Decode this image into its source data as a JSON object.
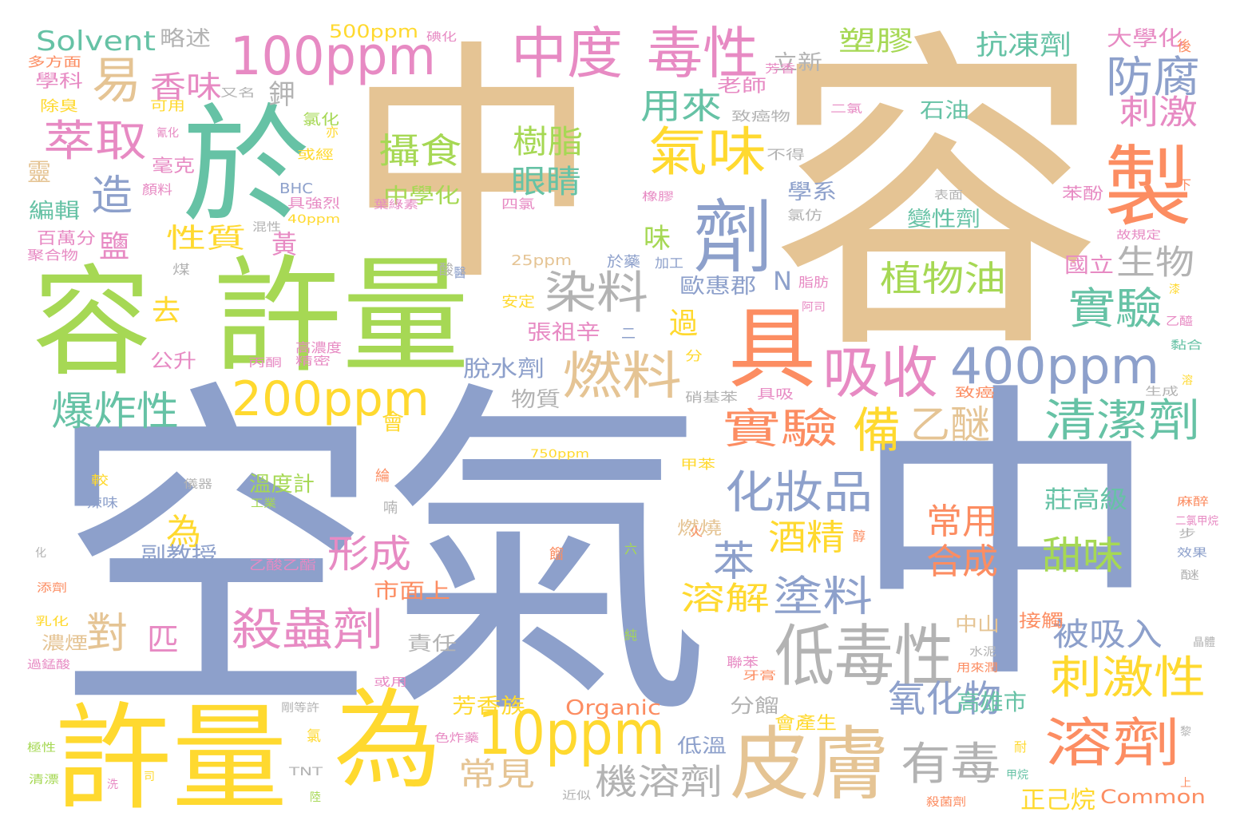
{
  "palette": {
    "tan": "#e5c494",
    "blue": "#8da0cb",
    "green": "#a6d854",
    "teal": "#66c2a5",
    "orange": "#fc8d62",
    "pink": "#e78ac3",
    "yellow": "#ffd92f",
    "gray": "#b3b3b3"
  },
  "words": [
    {
      "text": "中"
    },
    {
      "text": "容"
    },
    {
      "text": "空氣"
    },
    {
      "text": "中"
    },
    {
      "text": "許量"
    },
    {
      "text": "許量"
    },
    {
      "text": "容"
    },
    {
      "text": "為"
    },
    {
      "text": "於"
    },
    {
      "text": "製"
    },
    {
      "text": "具"
    },
    {
      "text": "皮膚"
    },
    {
      "text": "劑"
    },
    {
      "text": "低毒性"
    },
    {
      "text": "100ppm"
    },
    {
      "text": "200ppm"
    },
    {
      "text": "10ppm"
    },
    {
      "text": "400ppm"
    },
    {
      "text": "中度"
    },
    {
      "text": "毒性"
    },
    {
      "text": "氣味"
    },
    {
      "text": "吸收"
    },
    {
      "text": "燃料"
    },
    {
      "text": "溶劑"
    },
    {
      "text": "易"
    },
    {
      "text": "萃取"
    },
    {
      "text": "殺蟲劑"
    },
    {
      "text": "清潔劑"
    },
    {
      "text": "化妝品"
    },
    {
      "text": "刺激性"
    },
    {
      "text": "有毒"
    },
    {
      "text": "防腐"
    },
    {
      "text": "實驗"
    },
    {
      "text": "實驗"
    },
    {
      "text": "染料"
    },
    {
      "text": "機溶劑"
    },
    {
      "text": "塗料"
    },
    {
      "text": "植物油"
    },
    {
      "text": "爆炸性"
    },
    {
      "text": "備"
    },
    {
      "text": "攝食"
    },
    {
      "text": "眼睛"
    },
    {
      "text": "樹脂"
    },
    {
      "text": "刺激"
    },
    {
      "text": "生物"
    },
    {
      "text": "用來"
    },
    {
      "text": "乙醚"
    },
    {
      "text": "造"
    },
    {
      "text": "香味"
    },
    {
      "text": "形成"
    },
    {
      "text": "甜味"
    },
    {
      "text": "常用"
    },
    {
      "text": "合成"
    },
    {
      "text": "苯"
    },
    {
      "text": "酒精"
    },
    {
      "text": "溶解"
    },
    {
      "text": "對"
    },
    {
      "text": "匹"
    },
    {
      "text": "氧化物"
    },
    {
      "text": "被吸入"
    },
    {
      "text": "常見"
    },
    {
      "text": "Solvent"
    },
    {
      "text": "抗凍劑"
    },
    {
      "text": "塑膠"
    },
    {
      "text": "性質"
    },
    {
      "text": "脫水劑"
    },
    {
      "text": "為"
    },
    {
      "text": "去"
    },
    {
      "text": "鹽"
    },
    {
      "text": "黃"
    },
    {
      "text": "過"
    },
    {
      "text": "味"
    },
    {
      "text": "莊高級"
    },
    {
      "text": "Organic"
    },
    {
      "text": "Common"
    },
    {
      "text": "高雄市"
    },
    {
      "text": "正己烷"
    },
    {
      "text": "中學化"
    },
    {
      "text": "N"
    },
    {
      "text": "會"
    },
    {
      "text": "芳香族"
    },
    {
      "text": "市面上"
    },
    {
      "text": "副教授"
    },
    {
      "text": "溫度計"
    },
    {
      "text": "物質"
    },
    {
      "text": "張祖辛"
    },
    {
      "text": "歐惠郡"
    },
    {
      "text": "學系"
    },
    {
      "text": "變性劑"
    },
    {
      "text": "國立"
    },
    {
      "text": "石油"
    },
    {
      "text": "大學化"
    },
    {
      "text": "立新"
    },
    {
      "text": "略述"
    },
    {
      "text": "500ppm"
    },
    {
      "text": "鉀"
    },
    {
      "text": "老師"
    },
    {
      "text": "低溫"
    },
    {
      "text": "分餾"
    },
    {
      "text": "公升"
    },
    {
      "text": "責任"
    },
    {
      "text": "靈"
    },
    {
      "text": "編輯"
    },
    {
      "text": "百萬分"
    },
    {
      "text": "學科"
    },
    {
      "text": "毫克"
    },
    {
      "text": "中山"
    },
    {
      "text": "接觸"
    },
    {
      "text": "苯酚"
    },
    {
      "text": "會產生"
    },
    {
      "text": "燃燒"
    },
    {
      "text": "乙酸乙酯"
    },
    {
      "text": "濃煙"
    },
    {
      "text": "多方面"
    },
    {
      "text": "除臭"
    },
    {
      "text": "可用"
    },
    {
      "text": "氯化"
    },
    {
      "text": "或經"
    },
    {
      "text": "BHC"
    },
    {
      "text": "具強烈"
    },
    {
      "text": "40ppm"
    },
    {
      "text": "聚合物"
    },
    {
      "text": "煤"
    },
    {
      "text": "25ppm"
    },
    {
      "text": "安定"
    },
    {
      "text": "於藥"
    },
    {
      "text": "加工"
    },
    {
      "text": "脂肪"
    },
    {
      "text": "阿司"
    },
    {
      "text": "高濃度"
    },
    {
      "text": "精密"
    },
    {
      "text": "丙酮"
    },
    {
      "text": "分"
    },
    {
      "text": "硝基苯"
    },
    {
      "text": "具吸"
    },
    {
      "text": "致癌"
    },
    {
      "text": "生成"
    },
    {
      "text": "750ppm"
    },
    {
      "text": "甲苯"
    },
    {
      "text": "較"
    },
    {
      "text": "辣味"
    },
    {
      "text": "儀器"
    },
    {
      "text": "工業"
    },
    {
      "text": "綸"
    },
    {
      "text": "喃"
    },
    {
      "text": "火"
    },
    {
      "text": "六"
    },
    {
      "text": "餾"
    },
    {
      "text": "醇"
    },
    {
      "text": "化"
    },
    {
      "text": "添劑"
    },
    {
      "text": "乳化"
    },
    {
      "text": "過錳酸"
    },
    {
      "text": "或用"
    },
    {
      "text": "聯苯"
    },
    {
      "text": "牙膏"
    },
    {
      "text": "水泥"
    },
    {
      "text": "用來潤"
    },
    {
      "text": "晶體"
    },
    {
      "text": "麻醉"
    },
    {
      "text": "二氯甲烷"
    },
    {
      "text": "步"
    },
    {
      "text": "效果"
    },
    {
      "text": "醚"
    },
    {
      "text": "剛等許"
    },
    {
      "text": "氯"
    },
    {
      "text": "TNT"
    },
    {
      "text": "色炸藥"
    },
    {
      "text": "近似"
    },
    {
      "text": "殺菌劑"
    },
    {
      "text": "甲烷"
    },
    {
      "text": "耐"
    },
    {
      "text": "上"
    },
    {
      "text": "黎"
    },
    {
      "text": "極性"
    },
    {
      "text": "清漂"
    },
    {
      "text": "洗"
    },
    {
      "text": "司"
    },
    {
      "text": "陸"
    },
    {
      "text": "醫"
    },
    {
      "text": "下"
    },
    {
      "text": "故規定"
    },
    {
      "text": "漆"
    },
    {
      "text": "乙醯"
    },
    {
      "text": "黏合"
    },
    {
      "text": "溶"
    },
    {
      "text": "後"
    },
    {
      "text": "碘化"
    },
    {
      "text": "芳香"
    },
    {
      "text": "又名"
    },
    {
      "text": "二氯"
    },
    {
      "text": "致癌物"
    },
    {
      "text": "氯仿"
    },
    {
      "text": "不得"
    },
    {
      "text": "表面"
    },
    {
      "text": "橡膠"
    },
    {
      "text": "四氯"
    },
    {
      "text": "葉綠素"
    },
    {
      "text": "酸"
    },
    {
      "text": "混性"
    },
    {
      "text": "亦"
    },
    {
      "text": "二"
    },
    {
      "text": "純"
    },
    {
      "text": "顏料"
    },
    {
      "text": "氰化"
    }
  ]
}
